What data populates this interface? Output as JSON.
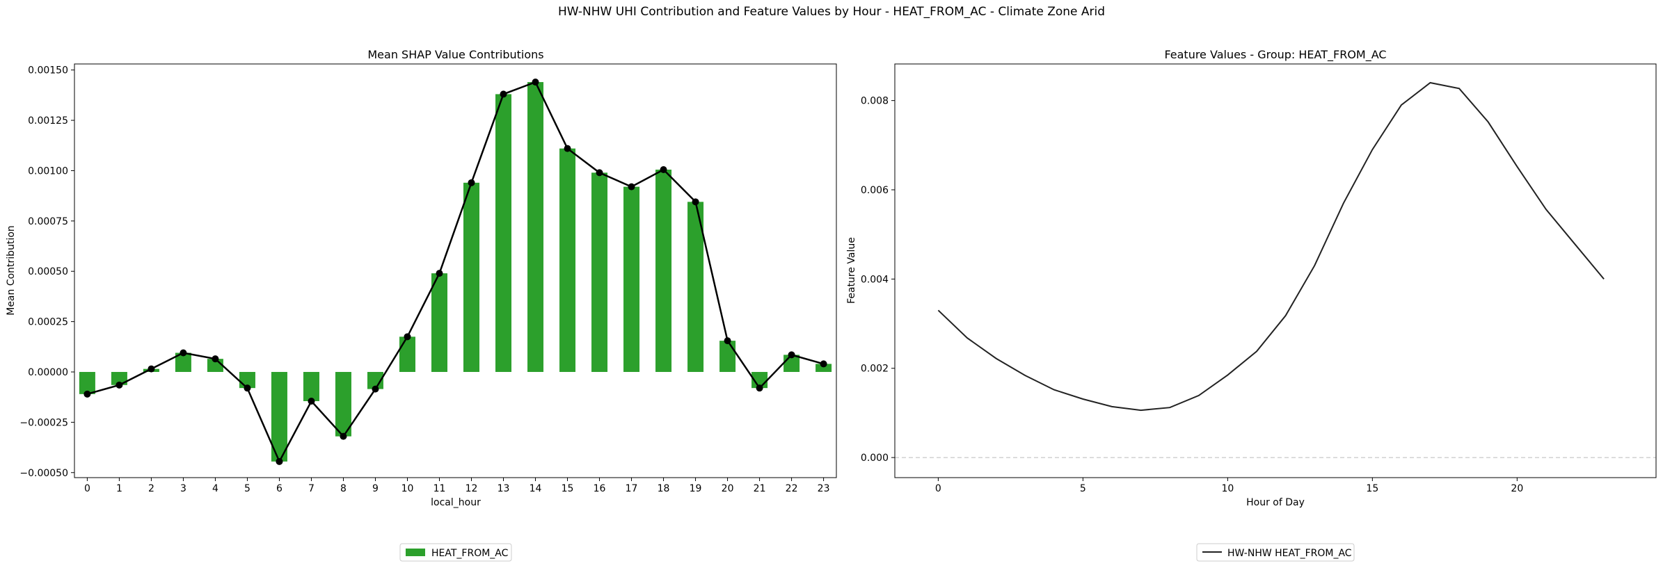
{
  "suptitle": "HW-NHW UHI Contribution and Feature Values by Hour - HEAT_FROM_AC - Climate Zone Arid",
  "colors": {
    "bar": "#2ca02c",
    "line": "#000000",
    "feature_line": "#222222",
    "zero_line": "#bbbbbb"
  },
  "chart_data": [
    {
      "type": "bar",
      "title": "Mean SHAP Value Contributions",
      "xlabel": "local_hour",
      "ylabel": "Mean Contribution",
      "categories": [
        "0",
        "1",
        "2",
        "3",
        "4",
        "5",
        "6",
        "7",
        "8",
        "9",
        "10",
        "11",
        "12",
        "13",
        "14",
        "15",
        "16",
        "17",
        "18",
        "19",
        "20",
        "21",
        "22",
        "23"
      ],
      "series": [
        {
          "name": "HEAT_FROM_AC",
          "values": [
            -0.00011,
            -6.5e-05,
            1.5e-05,
            9.5e-05,
            6.5e-05,
            -8e-05,
            -0.000445,
            -0.000145,
            -0.00032,
            -8.5e-05,
            0.000175,
            0.00049,
            0.00094,
            0.00138,
            0.00144,
            0.00111,
            0.00099,
            0.00092,
            0.001005,
            0.000845,
            0.000155,
            -8e-05,
            8.5e-05,
            4e-05
          ]
        }
      ],
      "overlay_line": "markers",
      "ylim": [
        -0.000525,
        0.00153
      ],
      "yticks": [
        "0.00150",
        "0.00125",
        "0.00100",
        "0.00075",
        "0.00050",
        "0.00025",
        "0.00000",
        "−0.00025",
        "−0.00050"
      ],
      "ytick_values": [
        0.0015,
        0.00125,
        0.001,
        0.00075,
        0.0005,
        0.00025,
        0,
        -0.00025,
        -0.0005
      ],
      "legend": [
        "HEAT_FROM_AC"
      ],
      "legend_position": "below"
    },
    {
      "type": "line",
      "title": "Feature Values - Group: HEAT_FROM_AC",
      "xlabel": "Hour of Day",
      "ylabel": "Feature Value",
      "x": [
        0,
        1,
        2,
        3,
        4,
        5,
        6,
        7,
        8,
        9,
        10,
        11,
        12,
        13,
        14,
        15,
        16,
        17,
        18,
        19,
        20,
        21,
        22,
        23
      ],
      "series": [
        {
          "name": "HW-NHW HEAT_FROM_AC",
          "values": [
            0.0033,
            0.00268,
            0.00222,
            0.00184,
            0.00152,
            0.00131,
            0.00114,
            0.00106,
            0.00112,
            0.00139,
            0.00185,
            0.00238,
            0.00318,
            0.0043,
            0.0057,
            0.0069,
            0.0079,
            0.0084,
            0.00827,
            0.00752,
            0.00652,
            0.00556,
            0.00478,
            0.004
          ]
        }
      ],
      "xlim": [
        -1.5,
        24.8
      ],
      "ylim": [
        -0.00045,
        0.00882
      ],
      "xticks": [
        "0",
        "5",
        "10",
        "15",
        "20"
      ],
      "xtick_values": [
        0,
        5,
        10,
        15,
        20
      ],
      "yticks": [
        "0.008",
        "0.006",
        "0.004",
        "0.002",
        "0.000"
      ],
      "ytick_values": [
        0.008,
        0.006,
        0.004,
        0.002,
        0
      ],
      "hline": 0,
      "legend": [
        "HW-NHW HEAT_FROM_AC"
      ],
      "legend_position": "below"
    }
  ]
}
